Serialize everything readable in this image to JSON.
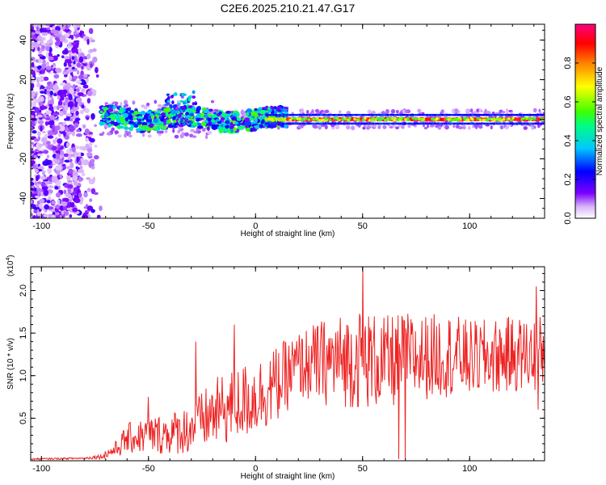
{
  "figure": {
    "title": "C2E6.2025.210.21.47.G17"
  },
  "chart_data": [
    {
      "type": "heatmap",
      "title": "C2E6.2025.210.21.47.G17",
      "xlabel": "Height of straight line (km)",
      "ylabel": "Frequency (Hz)",
      "xlim": [
        -105,
        135
      ],
      "ylim": [
        -50,
        48
      ],
      "xticks": [
        -100,
        -50,
        0,
        50,
        100
      ],
      "yticks": [
        -40,
        -20,
        0,
        20,
        40
      ],
      "colorbar": {
        "label": "Normalized spectral amplitude",
        "range": [
          0,
          1
        ],
        "ticks": [
          "0.0",
          "0.2",
          "0.4",
          "0.6",
          "0.8"
        ],
        "colormap": [
          "#ffffff",
          "#d8b4f8",
          "#7a00ff",
          "#0000ff",
          "#00c8ff",
          "#00ff80",
          "#40ff00",
          "#ffff00",
          "#ff8000",
          "#ff0000",
          "#ff0080"
        ]
      },
      "features": {
        "noise_region_x": [
          -105,
          -72
        ],
        "band_center_hz": 0,
        "band_width_hz_turbulent": 10,
        "band_width_hz_stable": 3,
        "stable_from_km": 15
      }
    },
    {
      "type": "line",
      "xlabel": "Height of straight line (km)",
      "ylabel": "SNR (10 * v/v)",
      "exponent_label": "(x10",
      "exponent_sup": "4",
      "xlim": [
        -105,
        135
      ],
      "ylim": [
        0,
        2.28
      ],
      "xticks": [
        -100,
        -50,
        0,
        50,
        100
      ],
      "yticks": [
        0.5,
        1.0,
        1.5,
        2.0
      ],
      "ytick_labels": [
        "0.5",
        "1.0",
        "1.5",
        "2.0"
      ],
      "series": [
        {
          "color": "#ee2222",
          "envelope": {
            "x": [
              -105,
              -80,
              -72,
              -65,
              -60,
              -50,
              -40,
              -30,
              -20,
              -10,
              0,
              10,
              20,
              30,
              40,
              50,
              60,
              70,
              80,
              90,
              100,
              110,
              120,
              130,
              135
            ],
            "mean": [
              0.02,
              0.03,
              0.05,
              0.14,
              0.26,
              0.3,
              0.32,
              0.38,
              0.55,
              0.65,
              0.75,
              0.9,
              1.12,
              1.15,
              1.18,
              1.2,
              1.15,
              1.2,
              1.22,
              1.25,
              1.2,
              1.22,
              1.25,
              1.25,
              1.28
            ],
            "amplitude": [
              0.01,
              0.01,
              0.03,
              0.1,
              0.18,
              0.22,
              0.25,
              0.3,
              0.4,
              0.45,
              0.45,
              0.45,
              0.4,
              0.5,
              0.55,
              0.6,
              0.55,
              0.55,
              0.5,
              0.5,
              0.45,
              0.45,
              0.45,
              0.45,
              0.45
            ]
          },
          "peaks": [
            {
              "x": -50,
              "y": 0.75
            },
            {
              "x": -28,
              "y": 1.4
            },
            {
              "x": -10,
              "y": 1.6
            },
            {
              "x": 50,
              "y": 2.28
            },
            {
              "x": 131,
              "y": 2.05
            }
          ],
          "dips": [
            {
              "x": 67,
              "y": 0.02
            },
            {
              "x": 70,
              "y": 0.02
            },
            {
              "x": 132,
              "y": 0.6
            }
          ]
        }
      ]
    }
  ]
}
